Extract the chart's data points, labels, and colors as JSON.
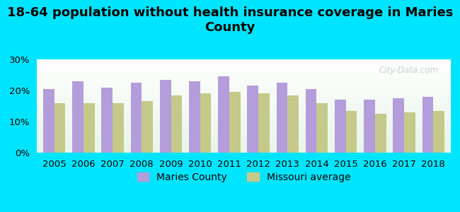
{
  "title": "18-64 population without health insurance coverage in Maries\nCounty",
  "years": [
    2005,
    2006,
    2007,
    2008,
    2009,
    2010,
    2011,
    2012,
    2013,
    2014,
    2015,
    2016,
    2017,
    2018
  ],
  "maries_county": [
    20.5,
    23.0,
    21.0,
    22.5,
    23.5,
    23.0,
    24.5,
    21.5,
    22.5,
    20.5,
    17.0,
    17.0,
    17.5,
    18.0
  ],
  "missouri_avg": [
    16.0,
    16.0,
    16.0,
    16.5,
    18.5,
    19.0,
    19.5,
    19.0,
    18.5,
    16.0,
    13.5,
    12.5,
    13.0,
    13.5
  ],
  "bar_color_maries": "#b39ddb",
  "bar_color_missouri": "#c5c98a",
  "background_color": "#00e5ff",
  "plot_bg_top": "#ffffff",
  "plot_bg_bottom": "#e8f5e9",
  "ylim": [
    0,
    30
  ],
  "yticks": [
    0,
    10,
    20,
    30
  ],
  "ytick_labels": [
    "0%",
    "10%",
    "20%",
    "30%"
  ],
  "legend_maries": "Maries County",
  "legend_missouri": "Missouri average",
  "watermark": "City-Data.com",
  "title_fontsize": 13,
  "tick_fontsize": 9.5,
  "legend_fontsize": 10
}
